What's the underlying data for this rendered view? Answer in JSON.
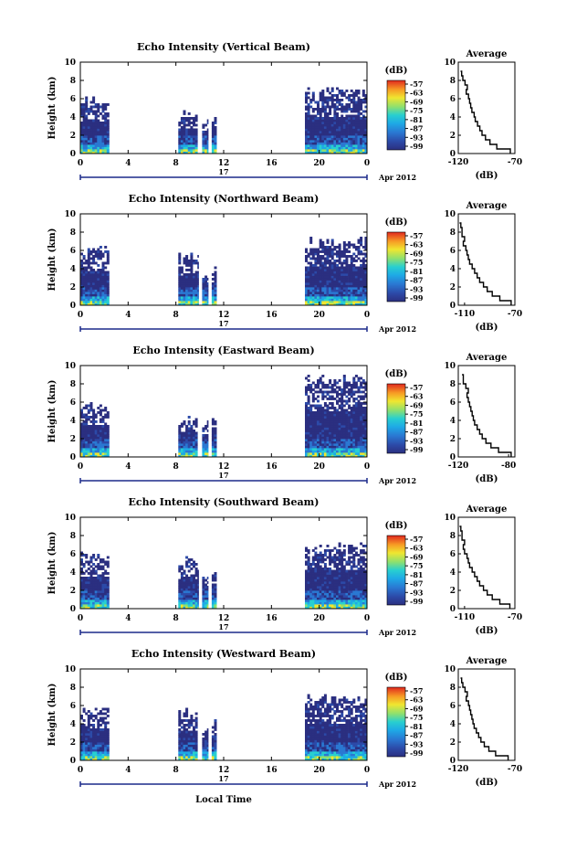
{
  "figure": {
    "x_axis_label": "Local Time",
    "date_label": "Apr 2012",
    "day_label": "17",
    "unit_label": "(dB)",
    "height_axis_label": "Height (km)",
    "average_title": "Average",
    "average_xlabel": "(dB)"
  },
  "chart_data": [
    {
      "type": "heatmap",
      "title": "Echo Intensity (Vertical Beam)",
      "xlabel": "",
      "ylabel": "Height (km)",
      "xlim": [
        0,
        24
      ],
      "ylim": [
        0,
        10
      ],
      "xticks": [
        "0",
        "4",
        "8",
        "12",
        "16",
        "20",
        "0"
      ],
      "yticks": [
        "0",
        "2",
        "4",
        "6",
        "8",
        "10"
      ],
      "colorbar": {
        "label": "(dB)",
        "ticks": [
          "-57",
          "-63",
          "-69",
          "-75",
          "-81",
          "-87",
          "-93",
          "-99"
        ],
        "range": [
          -99,
          -57
        ]
      },
      "data_segments": [
        {
          "start": 0,
          "end": 2.4,
          "top": 6.2
        },
        {
          "start": 8.2,
          "end": 9.8,
          "top": 4.6
        },
        {
          "start": 10.2,
          "end": 10.7,
          "top": 4.3
        },
        {
          "start": 11.0,
          "end": 11.4,
          "top": 4.4
        },
        {
          "start": 18.8,
          "end": 24,
          "top": 7.2
        }
      ],
      "average": {
        "title": "Average",
        "xlabel": "(dB)",
        "xticks": [
          "-120",
          "-70"
        ],
        "xlim": [
          -120,
          -70
        ],
        "ylim": [
          0,
          10
        ],
        "height": [
          0,
          0.5,
          1,
          1.5,
          2,
          2.5,
          3,
          3.5,
          4,
          4.5,
          5,
          5.5,
          6,
          6.5,
          7,
          7.5,
          8,
          8.5,
          9
        ],
        "db": [
          -74,
          -86,
          -92,
          -96,
          -99,
          -101,
          -103,
          -105,
          -106,
          -108,
          -109,
          -110,
          -111,
          -113,
          -112,
          -114,
          -116,
          -117,
          -118
        ]
      }
    },
    {
      "type": "heatmap",
      "title": "Echo Intensity (Northward Beam)",
      "xlabel": "",
      "ylabel": "Height (km)",
      "xlim": [
        0,
        24
      ],
      "ylim": [
        0,
        10
      ],
      "xticks": [
        "0",
        "4",
        "8",
        "12",
        "16",
        "20",
        "0"
      ],
      "yticks": [
        "0",
        "2",
        "4",
        "6",
        "8",
        "10"
      ],
      "colorbar": {
        "label": "(dB)",
        "ticks": [
          "-57",
          "-63",
          "-69",
          "-75",
          "-81",
          "-87",
          "-93",
          "-99"
        ],
        "range": [
          -99,
          -57
        ]
      },
      "data_segments": [
        {
          "start": 0,
          "end": 2.4,
          "top": 6.5
        },
        {
          "start": 8.2,
          "end": 9.9,
          "top": 5.8
        },
        {
          "start": 10.2,
          "end": 10.7,
          "top": 4.3
        },
        {
          "start": 11.0,
          "end": 11.4,
          "top": 4.4
        },
        {
          "start": 18.8,
          "end": 24,
          "top": 7.4
        }
      ],
      "average": {
        "title": "Average",
        "xlabel": "(dB)",
        "xticks": [
          "-110",
          "-70"
        ],
        "xlim": [
          -115,
          -70
        ],
        "ylim": [
          0,
          10
        ],
        "height": [
          0,
          0.5,
          1,
          1.5,
          2,
          2.5,
          3,
          3.5,
          4,
          4.5,
          5,
          5.5,
          6,
          6.5,
          7,
          7.5,
          8,
          8.5,
          9
        ],
        "db": [
          -73,
          -82,
          -88,
          -92,
          -95,
          -98,
          -100,
          -102,
          -104,
          -106,
          -107,
          -108,
          -109,
          -111,
          -110,
          -112,
          -112,
          -113,
          -114
        ]
      }
    },
    {
      "type": "heatmap",
      "title": "Echo Intensity (Eastward Beam)",
      "xlabel": "",
      "ylabel": "Height (km)",
      "xlim": [
        0,
        24
      ],
      "ylim": [
        0,
        10
      ],
      "xticks": [
        "0",
        "4",
        "8",
        "12",
        "16",
        "20",
        "0"
      ],
      "yticks": [
        "0",
        "2",
        "4",
        "6",
        "8",
        "10"
      ],
      "colorbar": {
        "label": "(dB)",
        "ticks": [
          "-57",
          "-63",
          "-69",
          "-75",
          "-81",
          "-87",
          "-93",
          "-99"
        ],
        "range": [
          -99,
          -57
        ]
      },
      "data_segments": [
        {
          "start": 0,
          "end": 2.4,
          "top": 6.1
        },
        {
          "start": 8.2,
          "end": 9.8,
          "top": 4.6
        },
        {
          "start": 10.2,
          "end": 10.7,
          "top": 4.3
        },
        {
          "start": 11.0,
          "end": 11.4,
          "top": 4.4
        },
        {
          "start": 18.8,
          "end": 24,
          "top": 9.0
        }
      ],
      "average": {
        "title": "Average",
        "xlabel": "(dB)",
        "xticks": [
          "-120",
          "-80"
        ],
        "xlim": [
          -120,
          -75
        ],
        "ylim": [
          0,
          10
        ],
        "height": [
          0,
          0.5,
          1,
          1.5,
          2,
          2.5,
          3,
          3.5,
          4,
          4.5,
          5,
          5.5,
          6,
          6.5,
          7,
          7.5,
          8,
          8.5,
          9
        ],
        "db": [
          -78,
          -88,
          -94,
          -98,
          -101,
          -103,
          -105,
          -107,
          -108,
          -109,
          -110,
          -111,
          -112,
          -113,
          -112,
          -114,
          -116,
          -116,
          -117
        ]
      }
    },
    {
      "type": "heatmap",
      "title": "Echo Intensity (Southward Beam)",
      "xlabel": "",
      "ylabel": "Height (km)",
      "xlim": [
        0,
        24
      ],
      "ylim": [
        0,
        10
      ],
      "xticks": [
        "0",
        "4",
        "8",
        "12",
        "16",
        "20",
        "0"
      ],
      "yticks": [
        "0",
        "2",
        "4",
        "6",
        "8",
        "10"
      ],
      "colorbar": {
        "label": "(dB)",
        "ticks": [
          "-57",
          "-63",
          "-69",
          "-75",
          "-81",
          "-87",
          "-93",
          "-99"
        ],
        "range": [
          -99,
          -57
        ]
      },
      "data_segments": [
        {
          "start": 0,
          "end": 2.4,
          "top": 6.2
        },
        {
          "start": 8.2,
          "end": 9.9,
          "top": 5.8
        },
        {
          "start": 10.2,
          "end": 10.7,
          "top": 4.3
        },
        {
          "start": 11.0,
          "end": 11.4,
          "top": 4.4
        },
        {
          "start": 18.8,
          "end": 24,
          "top": 7.3
        }
      ],
      "average": {
        "title": "Average",
        "xlabel": "(dB)",
        "xticks": [
          "-110",
          "-70"
        ],
        "xlim": [
          -115,
          -70
        ],
        "ylim": [
          0,
          10
        ],
        "height": [
          0,
          0.5,
          1,
          1.5,
          2,
          2.5,
          3,
          3.5,
          4,
          4.5,
          5,
          5.5,
          6,
          6.5,
          7,
          7.5,
          8,
          8.5,
          9
        ],
        "db": [
          -74,
          -82,
          -88,
          -92,
          -95,
          -98,
          -100,
          -102,
          -104,
          -106,
          -107,
          -108,
          -110,
          -111,
          -110,
          -112,
          -112,
          -113,
          -114
        ]
      }
    },
    {
      "type": "heatmap",
      "title": "Echo Intensity (Westward Beam)",
      "xlabel": "Local Time",
      "ylabel": "Height (km)",
      "xlim": [
        0,
        24
      ],
      "ylim": [
        0,
        10
      ],
      "xticks": [
        "0",
        "4",
        "8",
        "12",
        "16",
        "20",
        "0"
      ],
      "yticks": [
        "0",
        "2",
        "4",
        "6",
        "8",
        "10"
      ],
      "colorbar": {
        "label": "(dB)",
        "ticks": [
          "-57",
          "-63",
          "-69",
          "-75",
          "-81",
          "-87",
          "-93",
          "-99"
        ],
        "range": [
          -99,
          -57
        ]
      },
      "data_segments": [
        {
          "start": 0,
          "end": 2.4,
          "top": 6.2
        },
        {
          "start": 8.2,
          "end": 9.8,
          "top": 5.6
        },
        {
          "start": 10.2,
          "end": 10.7,
          "top": 4.3
        },
        {
          "start": 11.0,
          "end": 11.4,
          "top": 4.4
        },
        {
          "start": 18.8,
          "end": 24,
          "top": 7.1
        }
      ],
      "average": {
        "title": "Average",
        "xlabel": "(dB)",
        "xticks": [
          "-120",
          "-70"
        ],
        "xlim": [
          -120,
          -70
        ],
        "ylim": [
          0,
          10
        ],
        "height": [
          0,
          0.5,
          1,
          1.5,
          2,
          2.5,
          3,
          3.5,
          4,
          4.5,
          5,
          5.5,
          6,
          6.5,
          7,
          7.5,
          8,
          8.5,
          9
        ],
        "db": [
          -76,
          -87,
          -93,
          -97,
          -100,
          -102,
          -104,
          -106,
          -107,
          -108,
          -109,
          -110,
          -111,
          -113,
          -112,
          -114,
          -116,
          -117,
          -118
        ]
      }
    }
  ]
}
